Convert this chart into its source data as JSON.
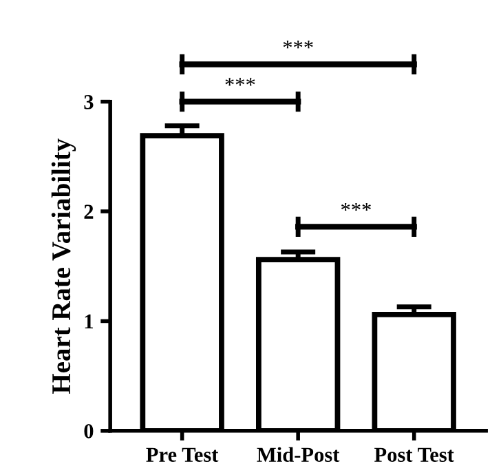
{
  "chart_data": {
    "type": "bar",
    "ylabel": "Heart Rate Variability",
    "categories": [
      "Pre Test",
      "Mid-Post",
      "Post Test"
    ],
    "values": [
      2.69,
      1.56,
      1.06
    ],
    "errors": [
      0.09,
      0.07,
      0.07
    ],
    "color": "#ffffff",
    "ylim": [
      0,
      3
    ],
    "yticks": [
      0,
      1,
      2,
      3
    ],
    "grid": false,
    "annotations": [
      "***",
      "***",
      "***"
    ]
  }
}
